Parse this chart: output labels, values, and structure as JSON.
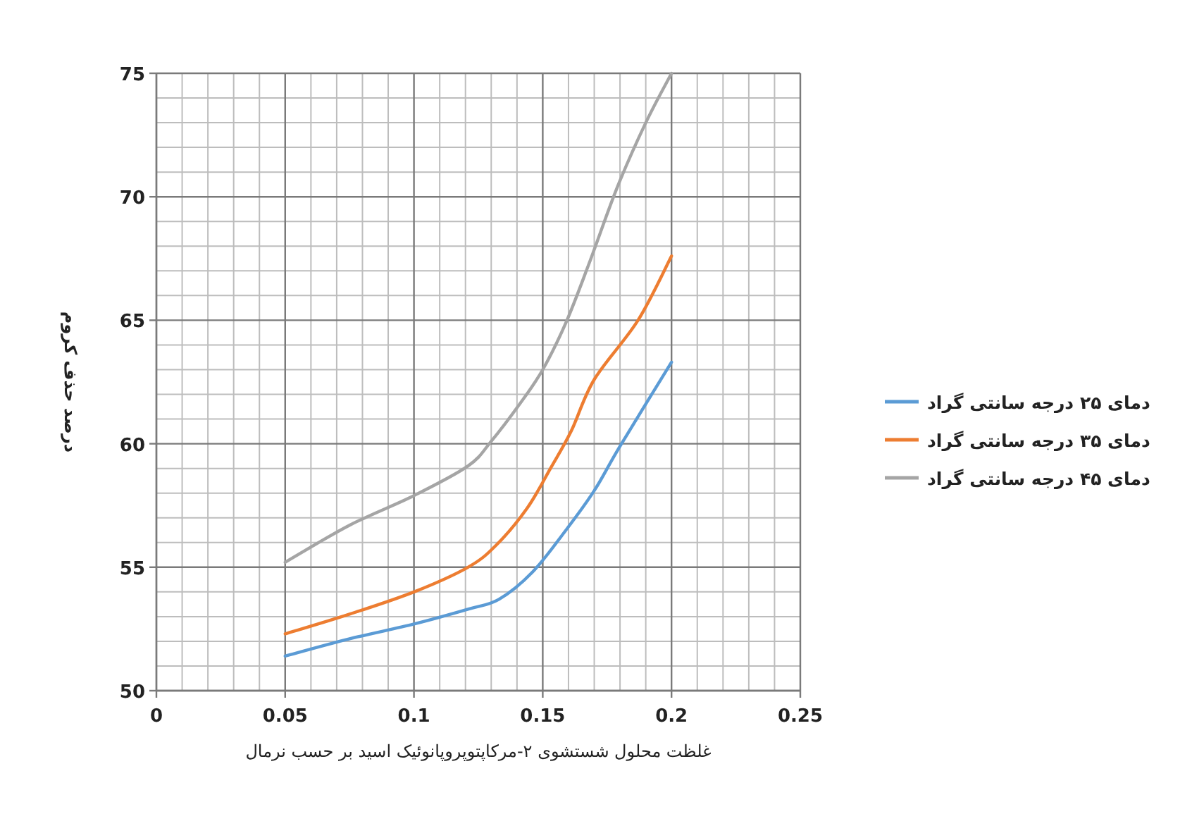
{
  "chart_data": {
    "type": "line",
    "xlabel": "غلظت محلول شستشوی ۲-مرکاپتوپروپانوئیک اسید بر حسب نرمال",
    "ylabel": "درصد حذف کروم",
    "xlim": [
      0,
      0.25
    ],
    "xticks": [
      0,
      0.05,
      0.1,
      0.15,
      0.2,
      0.25
    ],
    "ylim": [
      50,
      75
    ],
    "yticks": [
      50,
      55,
      60,
      65,
      70,
      75
    ],
    "grid": true,
    "legend": "right",
    "line_style": "solid",
    "marker": "none",
    "series": [
      {
        "name": "دمای ۲۵ درجه سانتی گراد",
        "color": "#5b9bd5",
        "x": [
          0.05,
          0.075,
          0.1,
          0.121,
          0.133,
          0.146,
          0.159,
          0.17,
          0.18,
          0.2
        ],
        "values": [
          51.4,
          52.1,
          52.7,
          53.3,
          53.7,
          54.8,
          56.5,
          58.1,
          59.9,
          63.3
        ]
      },
      {
        "name": "دمای ۳۵ درجه سانتی گراد",
        "color": "#ed7d31",
        "x": [
          0.05,
          0.075,
          0.1,
          0.121,
          0.132,
          0.144,
          0.153,
          0.161,
          0.17,
          0.187,
          0.2
        ],
        "values": [
          52.3,
          53.1,
          54.0,
          55.0,
          55.9,
          57.4,
          59.0,
          60.5,
          62.6,
          65.0,
          67.6
        ]
      },
      {
        "name": "دمای ۴۵ درجه سانتی گراد",
        "color": "#a5a5a5",
        "x": [
          0.05,
          0.075,
          0.1,
          0.121,
          0.13,
          0.141,
          0.15,
          0.159,
          0.168,
          0.179,
          0.19,
          0.2
        ],
        "values": [
          55.2,
          56.7,
          57.9,
          59.1,
          60.1,
          61.6,
          63.0,
          64.9,
          67.3,
          70.4,
          73.0,
          75.0
        ]
      }
    ]
  }
}
